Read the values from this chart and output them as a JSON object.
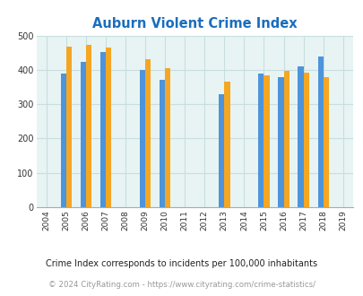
{
  "title": "Auburn Violent Crime Index",
  "years": [
    2004,
    2005,
    2006,
    2007,
    2008,
    2009,
    2010,
    2011,
    2012,
    2013,
    2014,
    2015,
    2016,
    2017,
    2018,
    2019
  ],
  "auburn": [
    null,
    null,
    null,
    null,
    null,
    null,
    null,
    null,
    null,
    null,
    null,
    null,
    null,
    null,
    null,
    null
  ],
  "kansas": [
    null,
    390,
    422,
    452,
    null,
    400,
    370,
    null,
    null,
    328,
    null,
    390,
    380,
    410,
    440,
    null
  ],
  "national": [
    null,
    468,
    472,
    465,
    null,
    432,
    405,
    null,
    null,
    366,
    null,
    385,
    396,
    393,
    380,
    null
  ],
  "ylim": [
    0,
    500
  ],
  "yticks": [
    0,
    100,
    200,
    300,
    400,
    500
  ],
  "bar_width": 0.28,
  "kansas_color": "#4d94db",
  "national_color": "#f5a623",
  "auburn_color": "#8bc34a",
  "bg_color": "#e8f4f4",
  "grid_color": "#c8dede",
  "title_color": "#1a6ebd",
  "footnote1": "Crime Index corresponds to incidents per 100,000 inhabitants",
  "footnote2": "© 2024 CityRating.com - https://www.cityrating.com/crime-statistics/",
  "footnote2_color": "#999999",
  "footnote2_link_color": "#4d94db"
}
